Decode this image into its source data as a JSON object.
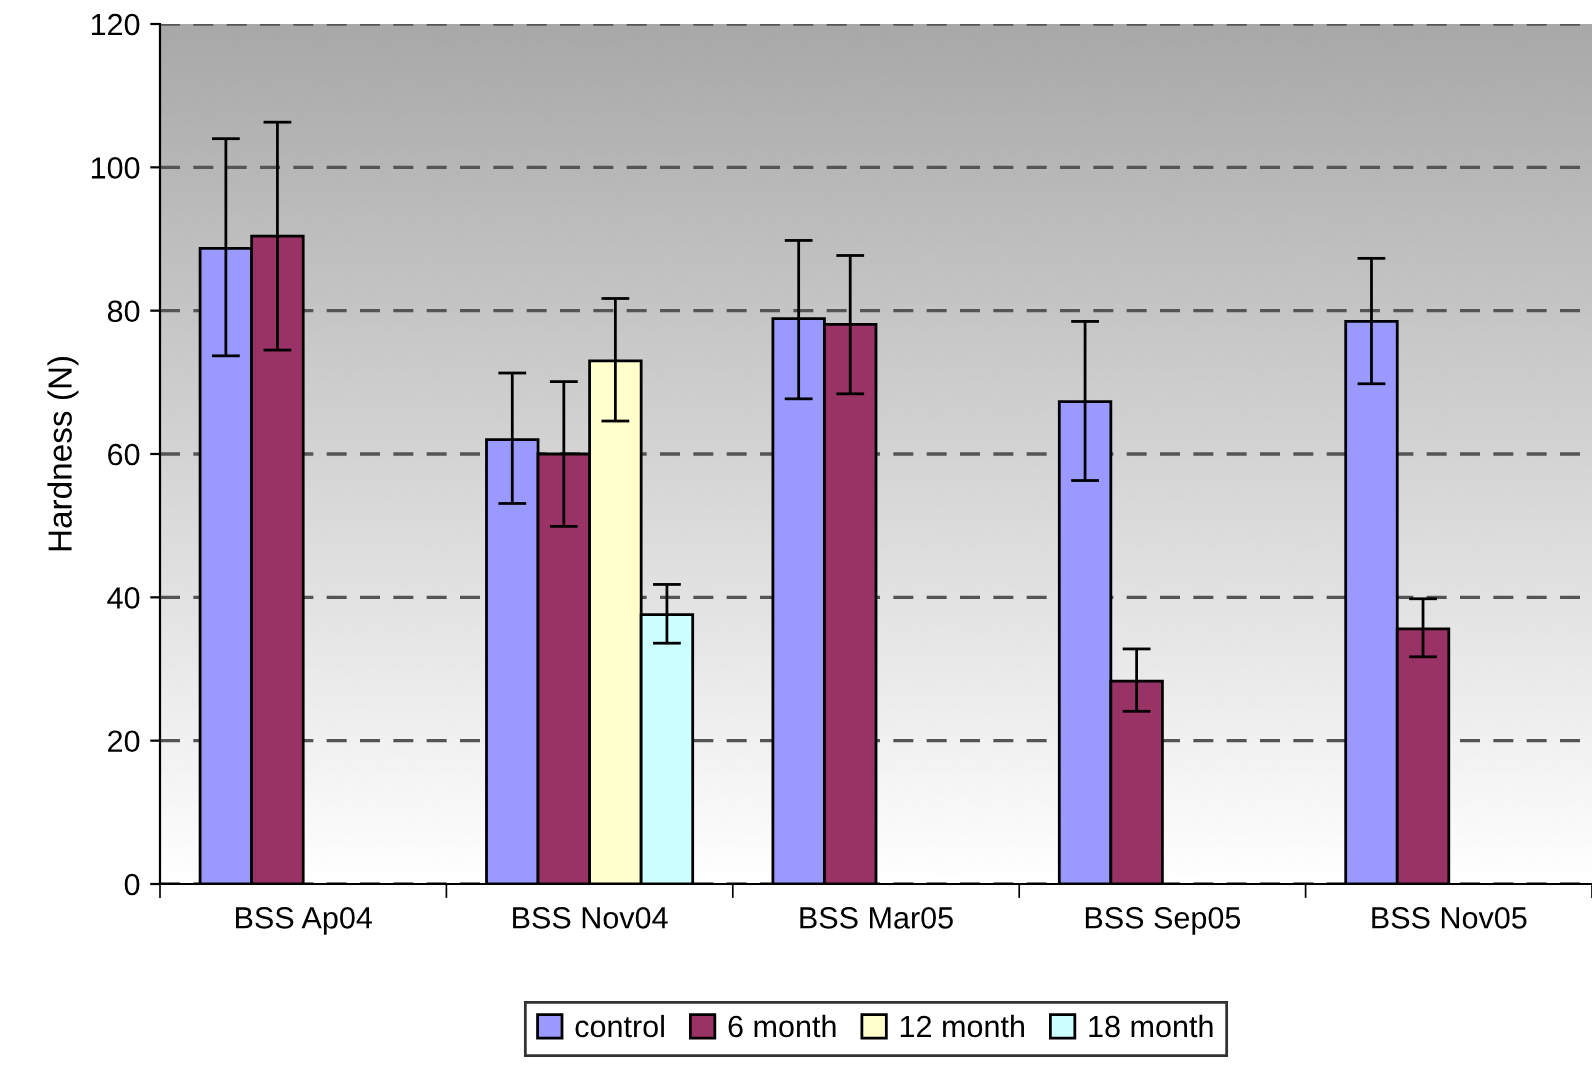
{
  "chart_data": {
    "type": "bar",
    "ylabel": "Hardness (N)",
    "categories": [
      "BSS Ap04",
      "BSS Nov04",
      "BSS Mar05",
      "BSS Sep05",
      "BSS Nov05"
    ],
    "series": [
      {
        "name": "control",
        "color": "#9999ff",
        "values": [
          88.7,
          62,
          78.9,
          67.3,
          78.5
        ],
        "errors": [
          [
            73.7,
            104
          ],
          [
            53.1,
            71.3
          ],
          [
            67.7,
            89.8
          ],
          [
            56.3,
            78.5
          ],
          [
            69.8,
            87.3
          ]
        ]
      },
      {
        "name": "6 month",
        "color": "#993366",
        "values": [
          90.4,
          60,
          78.1,
          28.3,
          35.6
        ],
        "errors": [
          [
            74.5,
            106.3
          ],
          [
            49.9,
            70.1
          ],
          [
            68.4,
            87.7
          ],
          [
            24.1,
            32.8
          ],
          [
            31.7,
            39.8
          ]
        ]
      },
      {
        "name": "12 month",
        "color": "#ffffcc",
        "values": [
          null,
          73,
          null,
          null,
          null
        ],
        "errors": [
          null,
          [
            64.6,
            81.7
          ],
          null,
          null,
          null
        ]
      },
      {
        "name": "18 month",
        "color": "#ccffff",
        "values": [
          null,
          37.6,
          null,
          null,
          null
        ],
        "errors": [
          null,
          [
            33.6,
            41.8
          ],
          null,
          null,
          null
        ]
      }
    ],
    "ylim": [
      0,
      120
    ],
    "yticks": [
      0,
      20,
      40,
      60,
      80,
      100,
      120
    ],
    "grid": "y",
    "legend": "bottom"
  }
}
